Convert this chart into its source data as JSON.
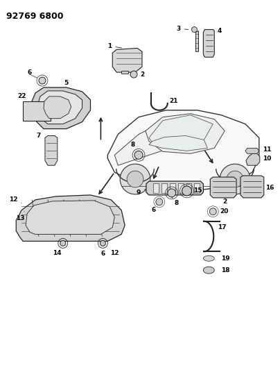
{
  "title": "92769 6800",
  "title_fontsize": 9,
  "title_bold": true,
  "bg_color": "#ffffff",
  "fig_width": 4.04,
  "fig_height": 5.33,
  "dpi": 100,
  "line_color": "#222222",
  "part_fill": "#e0e0e0",
  "label_fontsize": 6.5
}
